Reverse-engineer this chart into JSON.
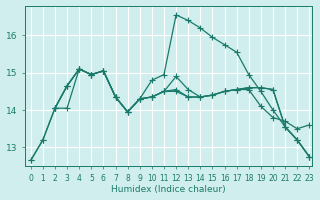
{
  "xlabel": "Humidex (Indice chaleur)",
  "bg_color": "#d0eeee",
  "line_color": "#1a7a6a",
  "grid_color": "#ffffff",
  "xlim": [
    -0.5,
    23.2
  ],
  "ylim": [
    12.5,
    16.8
  ],
  "yticks": [
    13,
    14,
    15,
    16
  ],
  "xticks": [
    0,
    1,
    2,
    3,
    4,
    5,
    6,
    7,
    8,
    9,
    10,
    11,
    12,
    13,
    14,
    15,
    16,
    17,
    18,
    19,
    20,
    21,
    22,
    23
  ],
  "lines": [
    {
      "x": [
        0,
        1,
        2,
        3,
        4,
        5,
        6,
        7,
        8,
        9,
        10,
        11,
        12,
        13,
        14,
        15,
        16,
        17,
        18,
        19,
        20,
        21,
        22,
        23
      ],
      "y": [
        12.65,
        13.2,
        14.05,
        14.65,
        15.1,
        14.95,
        15.05,
        14.35,
        13.95,
        14.3,
        14.35,
        14.5,
        14.55,
        14.35,
        14.35,
        14.4,
        14.5,
        14.55,
        14.55,
        14.1,
        13.8,
        13.7,
        13.5,
        13.6
      ]
    },
    {
      "x": [
        0,
        1,
        2,
        3,
        4,
        5,
        6,
        7,
        8,
        9,
        10,
        11,
        12,
        13,
        14,
        15,
        16,
        17,
        18,
        19,
        20,
        21,
        22,
        23
      ],
      "y": [
        12.65,
        13.2,
        14.05,
        14.05,
        15.1,
        14.95,
        15.05,
        14.35,
        13.95,
        14.3,
        14.8,
        14.95,
        16.55,
        16.4,
        16.2,
        15.95,
        15.75,
        15.55,
        14.95,
        14.5,
        14.0,
        13.55,
        13.2,
        12.75
      ]
    },
    {
      "x": [
        2,
        3,
        4,
        5,
        6,
        7,
        8,
        9,
        10,
        11,
        12,
        13,
        14,
        15,
        16,
        17,
        18,
        19,
        20,
        21,
        22,
        23
      ],
      "y": [
        14.05,
        14.65,
        15.1,
        14.95,
        15.05,
        14.35,
        13.95,
        14.3,
        14.35,
        14.5,
        14.5,
        14.35,
        14.35,
        14.4,
        14.5,
        14.55,
        14.6,
        14.6,
        14.55,
        13.55,
        13.2,
        12.75
      ]
    },
    {
      "x": [
        2,
        3,
        4,
        5,
        6,
        7,
        8,
        9,
        10,
        11,
        12,
        13,
        14,
        15,
        16,
        17,
        18,
        19,
        20,
        21,
        22,
        23
      ],
      "y": [
        14.05,
        14.65,
        15.1,
        14.95,
        15.05,
        14.35,
        13.95,
        14.3,
        14.35,
        14.5,
        14.9,
        14.55,
        14.35,
        14.4,
        14.5,
        14.55,
        14.6,
        14.6,
        14.55,
        13.55,
        13.2,
        12.75
      ]
    }
  ]
}
